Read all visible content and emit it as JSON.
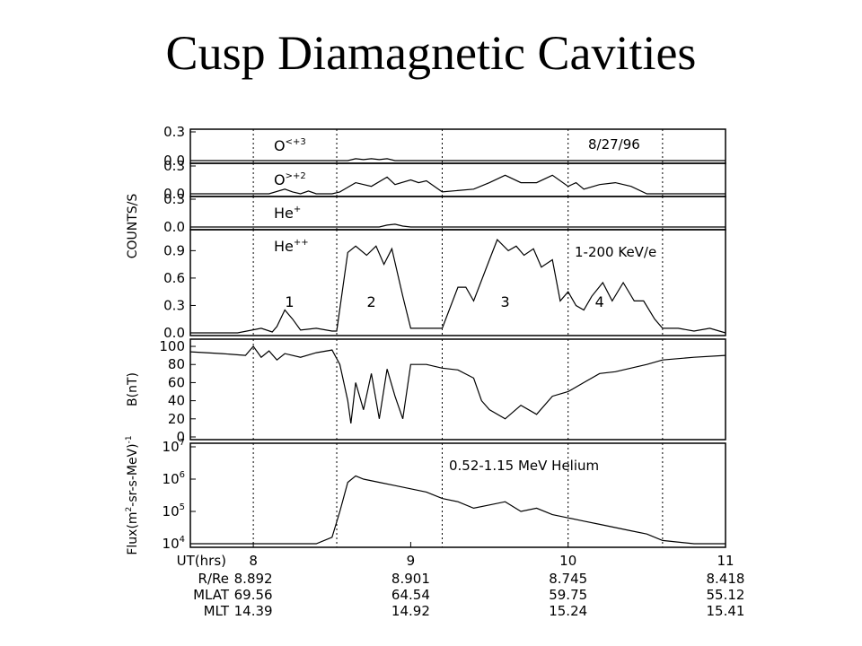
{
  "title": "Cusp Diamagnetic Cavities",
  "chart_data": {
    "type": "line",
    "x_axis": {
      "label": "UT(hrs)",
      "range": [
        7.6,
        11
      ],
      "ticks": [
        "8",
        "9",
        "10",
        "11"
      ],
      "tick_values": [
        8,
        9,
        10,
        11
      ],
      "vertical_markers_ut": [
        8,
        8.53,
        9.2,
        10.0,
        10.6
      ]
    },
    "ephemeris": {
      "rows": [
        {
          "label": "R/Re",
          "values": [
            "8.892",
            "8.901",
            "8.745",
            "8.418"
          ]
        },
        {
          "label": "MLAT",
          "values": [
            "69.56",
            "64.54",
            "59.75",
            "55.12"
          ]
        },
        {
          "label": "MLT",
          "values": [
            "14.39",
            "14.92",
            "15.24",
            "15.41"
          ]
        }
      ]
    },
    "date": "8/27/96",
    "counts_axis_label": "COUNTS/S",
    "panels": [
      {
        "id": "o_high",
        "label": "O",
        "label_sup": "<+3",
        "ylim": [
          0,
          0.3
        ],
        "ytick_labels": [
          "0.3",
          "0.0"
        ],
        "ytick_values": [
          0.3,
          0
        ],
        "series": {
          "x": [
            7.6,
            8.6,
            8.65,
            8.7,
            8.75,
            8.8,
            8.85,
            8.9,
            9.0,
            11.0
          ],
          "y": [
            0,
            0,
            0.02,
            0.01,
            0.02,
            0.01,
            0.02,
            0.0,
            0,
            0
          ]
        }
      },
      {
        "id": "o_low",
        "label": "O",
        "label_sup": ">+2",
        "ylim": [
          0,
          0.3
        ],
        "ytick_labels": [
          "0.3",
          "0.0"
        ],
        "ytick_values": [
          0.3,
          0
        ],
        "series": {
          "x": [
            7.6,
            8.1,
            8.2,
            8.25,
            8.3,
            8.35,
            8.4,
            8.5,
            8.55,
            8.65,
            8.75,
            8.85,
            8.9,
            9.0,
            9.05,
            9.1,
            9.2,
            9.4,
            9.5,
            9.6,
            9.7,
            9.8,
            9.9,
            10.0,
            10.05,
            10.1,
            10.2,
            10.3,
            10.4,
            10.5,
            10.6,
            11.0
          ],
          "y": [
            0,
            0,
            0.05,
            0.02,
            0,
            0.03,
            0.0,
            0,
            0.02,
            0.12,
            0.08,
            0.18,
            0.1,
            0.15,
            0.12,
            0.14,
            0.02,
            0.05,
            0.12,
            0.2,
            0.12,
            0.12,
            0.2,
            0.08,
            0.12,
            0.05,
            0.1,
            0.12,
            0.08,
            0.0,
            0,
            0
          ]
        }
      },
      {
        "id": "he_plus",
        "label": "He",
        "label_sup": "+",
        "ylim": [
          0,
          0.3
        ],
        "ytick_labels": [
          "0.3",
          "0.0"
        ],
        "ytick_values": [
          0.3,
          0
        ],
        "series": {
          "x": [
            7.6,
            8.8,
            8.85,
            8.9,
            8.95,
            9.0,
            11.0
          ],
          "y": [
            0,
            0,
            0.02,
            0.03,
            0.01,
            0,
            0
          ]
        }
      },
      {
        "id": "he_plusplus",
        "label": "He",
        "label_sup": "++",
        "annotation": "1-200 KeV/e",
        "ylim": [
          0,
          1.1
        ],
        "ytick_labels": [
          "0.9",
          "0.6",
          "0.3",
          "0.0"
        ],
        "ytick_values": [
          0.9,
          0.6,
          0.3,
          0
        ],
        "region_labels": [
          "1",
          "2",
          "3",
          "4"
        ],
        "region_label_x": [
          8.23,
          8.75,
          9.6,
          10.2
        ],
        "series": {
          "x": [
            7.6,
            7.9,
            8.05,
            8.12,
            8.15,
            8.2,
            8.25,
            8.3,
            8.4,
            8.5,
            8.53,
            8.6,
            8.65,
            8.72,
            8.78,
            8.83,
            8.88,
            8.95,
            9.0,
            9.1,
            9.2,
            9.3,
            9.35,
            9.4,
            9.5,
            9.55,
            9.62,
            9.67,
            9.72,
            9.78,
            9.83,
            9.9,
            9.95,
            10.0,
            10.05,
            10.1,
            10.15,
            10.22,
            10.28,
            10.35,
            10.42,
            10.48,
            10.55,
            10.6,
            10.7,
            10.8,
            10.9,
            11.0
          ],
          "y": [
            0.0,
            0.0,
            0.05,
            0.01,
            0.07,
            0.25,
            0.15,
            0.03,
            0.05,
            0.02,
            0.02,
            0.88,
            0.95,
            0.85,
            0.95,
            0.75,
            0.92,
            0.4,
            0.05,
            0.05,
            0.05,
            0.5,
            0.5,
            0.35,
            0.8,
            1.02,
            0.9,
            0.95,
            0.85,
            0.92,
            0.72,
            0.8,
            0.35,
            0.45,
            0.3,
            0.25,
            0.4,
            0.55,
            0.35,
            0.55,
            0.35,
            0.35,
            0.15,
            0.05,
            0.05,
            0.02,
            0.05,
            0.0
          ]
        }
      },
      {
        "id": "bfield",
        "ylabel": "B(nT)",
        "ylim": [
          0,
          105
        ],
        "ytick_labels": [
          "100",
          "80",
          "60",
          "40",
          "20",
          "0"
        ],
        "ytick_values": [
          100,
          80,
          60,
          40,
          20,
          0
        ],
        "series": {
          "x": [
            7.6,
            7.8,
            7.95,
            8.0,
            8.05,
            8.1,
            8.15,
            8.2,
            8.3,
            8.4,
            8.5,
            8.55,
            8.6,
            8.62,
            8.65,
            8.7,
            8.75,
            8.8,
            8.85,
            8.9,
            8.95,
            9.0,
            9.1,
            9.2,
            9.3,
            9.4,
            9.45,
            9.5,
            9.6,
            9.7,
            9.8,
            9.9,
            10.0,
            10.1,
            10.2,
            10.3,
            10.5,
            10.6,
            10.8,
            11.0
          ],
          "y": [
            94,
            92,
            90,
            100,
            88,
            95,
            85,
            92,
            88,
            93,
            96,
            80,
            40,
            15,
            60,
            30,
            70,
            20,
            75,
            45,
            20,
            80,
            80,
            76,
            74,
            65,
            40,
            30,
            20,
            35,
            25,
            45,
            50,
            60,
            70,
            72,
            80,
            85,
            88,
            90
          ]
        }
      },
      {
        "id": "flux",
        "ylabel": "Flux(m^2-sr-s-MeV)^-1",
        "annotation": "0.52-1.15 MeV Helium",
        "yscale": "log",
        "ylim_log10": [
          4,
          7
        ],
        "ytick_labels": [
          "10^7",
          "10^6",
          "10^5",
          "10^4"
        ],
        "ytick_values_log10": [
          7,
          6,
          5,
          4
        ],
        "series": {
          "x": [
            7.6,
            7.8,
            8.0,
            8.2,
            8.4,
            8.5,
            8.55,
            8.6,
            8.65,
            8.7,
            8.8,
            8.9,
            9.0,
            9.1,
            9.2,
            9.3,
            9.4,
            9.5,
            9.6,
            9.7,
            9.8,
            9.9,
            10.0,
            10.1,
            10.2,
            10.3,
            10.4,
            10.5,
            10.6,
            10.8,
            11.0
          ],
          "y_log10": [
            4.0,
            4.0,
            4.0,
            4.0,
            4.0,
            4.2,
            5.0,
            5.9,
            6.1,
            6.0,
            5.9,
            5.8,
            5.7,
            5.6,
            5.4,
            5.3,
            5.1,
            5.2,
            5.3,
            5.0,
            5.1,
            4.9,
            4.8,
            4.7,
            4.6,
            4.5,
            4.4,
            4.3,
            4.1,
            4.0,
            4.0
          ]
        }
      }
    ]
  }
}
